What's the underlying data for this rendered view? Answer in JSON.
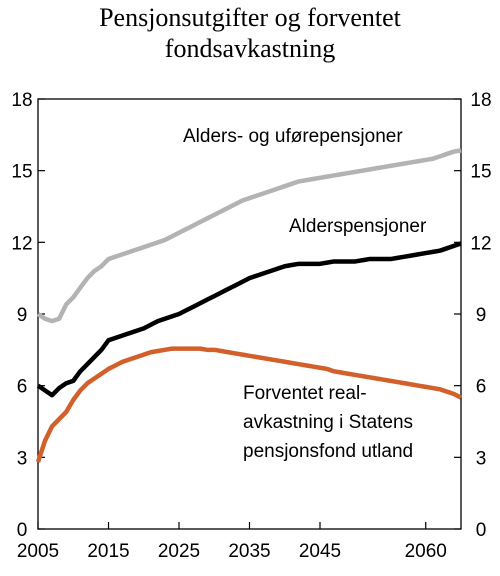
{
  "chart_data": {
    "type": "line",
    "title_lines": [
      "Pensjonsutgifter og forventet",
      "fondsavkastning"
    ],
    "xlabel": "",
    "ylabel": "",
    "xlim": [
      2005,
      2065
    ],
    "ylim": [
      0,
      18
    ],
    "x_ticks": [
      2005,
      2015,
      2025,
      2035,
      2045,
      2060
    ],
    "y_ticks": [
      0,
      3,
      6,
      9,
      12,
      15,
      18
    ],
    "y_axis_both_sides": true,
    "grid": false,
    "legend": "none (series labelled by annotations in the plot)",
    "annotations": [
      {
        "lines": [
          "Alders- og uførepensjoner"
        ],
        "series_index": 0
      },
      {
        "lines": [
          "Alderspensjoner"
        ],
        "series_index": 1
      },
      {
        "lines": [
          "Forventet real-",
          "avkastning i Statens",
          "pensjonsfond utland"
        ],
        "series_index": 2
      }
    ],
    "x": [
      2005,
      2006,
      2007,
      2008,
      2009,
      2010,
      2011,
      2012,
      2013,
      2014,
      2015,
      2016,
      2017,
      2018,
      2019,
      2020,
      2021,
      2022,
      2023,
      2024,
      2025,
      2026,
      2027,
      2028,
      2029,
      2030,
      2031,
      2032,
      2033,
      2034,
      2035,
      2036,
      2037,
      2038,
      2039,
      2040,
      2041,
      2042,
      2043,
      2044,
      2045,
      2046,
      2047,
      2048,
      2049,
      2050,
      2051,
      2052,
      2053,
      2054,
      2055,
      2056,
      2057,
      2058,
      2059,
      2060,
      2061,
      2062,
      2063,
      2064,
      2065
    ],
    "series": [
      {
        "color": "#b3b3b3",
        "values": [
          9.0,
          8.8,
          8.7,
          8.8,
          9.4,
          9.7,
          10.1,
          10.5,
          10.8,
          11.0,
          11.3,
          11.4,
          11.5,
          11.6,
          11.7,
          11.8,
          11.9,
          12.0,
          12.1,
          12.25,
          12.4,
          12.55,
          12.7,
          12.85,
          13.0,
          13.15,
          13.3,
          13.45,
          13.6,
          13.75,
          13.85,
          13.95,
          14.05,
          14.15,
          14.25,
          14.35,
          14.45,
          14.55,
          14.6,
          14.65,
          14.7,
          14.75,
          14.8,
          14.85,
          14.9,
          14.95,
          15.0,
          15.05,
          15.1,
          15.15,
          15.2,
          15.25,
          15.3,
          15.35,
          15.4,
          15.45,
          15.5,
          15.6,
          15.7,
          15.8,
          15.85
        ]
      },
      {
        "color": "#000000",
        "values": [
          6.0,
          5.8,
          5.6,
          5.9,
          6.1,
          6.2,
          6.6,
          6.9,
          7.2,
          7.5,
          7.9,
          8.0,
          8.1,
          8.2,
          8.3,
          8.4,
          8.55,
          8.7,
          8.8,
          8.9,
          9.0,
          9.15,
          9.3,
          9.45,
          9.6,
          9.75,
          9.9,
          10.05,
          10.2,
          10.35,
          10.5,
          10.6,
          10.7,
          10.8,
          10.9,
          11.0,
          11.05,
          11.1,
          11.1,
          11.1,
          11.1,
          11.15,
          11.2,
          11.2,
          11.2,
          11.2,
          11.25,
          11.3,
          11.3,
          11.3,
          11.3,
          11.35,
          11.4,
          11.45,
          11.5,
          11.55,
          11.6,
          11.65,
          11.75,
          11.85,
          11.95
        ]
      },
      {
        "color": "#d2602a",
        "values": [
          2.8,
          3.7,
          4.3,
          4.6,
          4.9,
          5.4,
          5.8,
          6.1,
          6.3,
          6.5,
          6.7,
          6.85,
          7.0,
          7.1,
          7.2,
          7.3,
          7.4,
          7.45,
          7.5,
          7.55,
          7.55,
          7.55,
          7.55,
          7.55,
          7.5,
          7.5,
          7.45,
          7.4,
          7.35,
          7.3,
          7.25,
          7.2,
          7.15,
          7.1,
          7.05,
          7.0,
          6.95,
          6.9,
          6.85,
          6.8,
          6.75,
          6.7,
          6.6,
          6.55,
          6.5,
          6.45,
          6.4,
          6.35,
          6.3,
          6.25,
          6.2,
          6.15,
          6.1,
          6.05,
          6.0,
          5.95,
          5.9,
          5.85,
          5.75,
          5.65,
          5.5
        ]
      }
    ]
  }
}
